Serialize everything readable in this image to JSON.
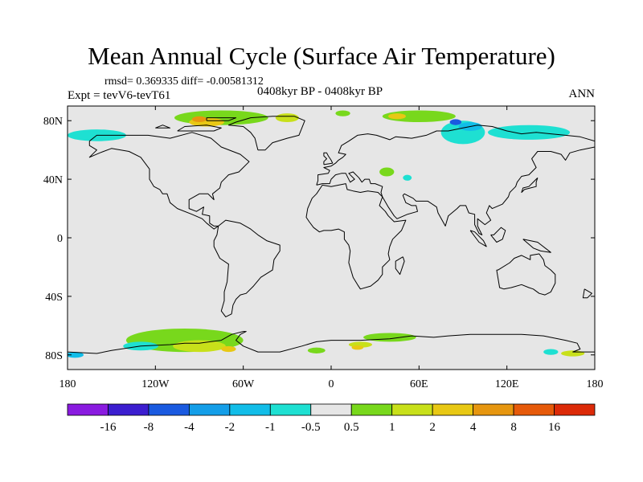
{
  "title": "Mean Annual Cycle (Surface Air Temperature)",
  "stats": "rmsd= 0.369335 diff= -0.00581312",
  "experiment": "Expt = tevV6-tevT61",
  "period": "0408kyr BP - 0408kyr BP",
  "season": "ANN",
  "map": {
    "projection": "cylindrical-equidistant",
    "lon_range": [
      -180,
      180
    ],
    "lat_range": [
      -90,
      90
    ],
    "background_color": "#e6e6e6",
    "coastline_color": "#000000",
    "lat_ticks": [
      {
        "lat": 80,
        "label": "80N"
      },
      {
        "lat": 40,
        "label": "40N"
      },
      {
        "lat": 0,
        "label": "0"
      },
      {
        "lat": -40,
        "label": "40S"
      },
      {
        "lat": -80,
        "label": "80S"
      }
    ],
    "lon_ticks": [
      {
        "lon": -180,
        "label": "180"
      },
      {
        "lon": -120,
        "label": "120W"
      },
      {
        "lon": -60,
        "label": "60W"
      },
      {
        "lon": 0,
        "label": "0"
      },
      {
        "lon": 60,
        "label": "60E"
      },
      {
        "lon": 120,
        "label": "120E"
      },
      {
        "lon": 180,
        "label": "180"
      }
    ]
  },
  "colorbar": {
    "colors": [
      "#8a1be0",
      "#3c1ecf",
      "#1a5ae0",
      "#149ee8",
      "#12bde8",
      "#1ee0d2",
      "#e6e6e6",
      "#78d81c",
      "#c8e01a",
      "#e8c814",
      "#e6960f",
      "#e65a0a",
      "#dc2a08"
    ],
    "labels": [
      "-16",
      "-8",
      "-4",
      "-2",
      "-1",
      "-0.5",
      "0.5",
      "1",
      "2",
      "4",
      "8",
      "16"
    ]
  },
  "anomalies": [
    {
      "level": "1",
      "color": "#78d81c",
      "lon": -75,
      "lat": 82,
      "rx": 32,
      "ry": 5
    },
    {
      "level": "4",
      "color": "#e8c814",
      "lon": -85,
      "lat": 79,
      "rx": 12,
      "ry": 3
    },
    {
      "level": "8",
      "color": "#e6960f",
      "lon": -90,
      "lat": 81,
      "rx": 5,
      "ry": 2
    },
    {
      "level": "2",
      "color": "#c8e01a",
      "lon": -30,
      "lat": 82,
      "rx": 8,
      "ry": 3
    },
    {
      "level": "1",
      "color": "#78d81c",
      "lon": 8,
      "lat": 85,
      "rx": 5,
      "ry": 2
    },
    {
      "level": "1",
      "color": "#78d81c",
      "lon": 60,
      "lat": 83,
      "rx": 25,
      "ry": 4
    },
    {
      "level": "4",
      "color": "#e8c814",
      "lon": 45,
      "lat": 83,
      "rx": 6,
      "ry": 2
    },
    {
      "level": "-0.5",
      "color": "#1ee0d2",
      "lon": 90,
      "lat": 72,
      "rx": 15,
      "ry": 8
    },
    {
      "level": "-1",
      "color": "#12bde8",
      "lon": 95,
      "lat": 76,
      "rx": 8,
      "ry": 3
    },
    {
      "level": "-4",
      "color": "#1a5ae0",
      "lon": 85,
      "lat": 79,
      "rx": 4,
      "ry": 2
    },
    {
      "level": "-0.5",
      "color": "#1ee0d2",
      "lon": -160,
      "lat": 70,
      "rx": 20,
      "ry": 4
    },
    {
      "level": "-0.5",
      "color": "#1ee0d2",
      "lon": 135,
      "lat": 72,
      "rx": 28,
      "ry": 5
    },
    {
      "level": "1",
      "color": "#78d81c",
      "lon": -100,
      "lat": -70,
      "rx": 40,
      "ry": 8
    },
    {
      "level": "2",
      "color": "#c8e01a",
      "lon": -90,
      "lat": -74,
      "rx": 18,
      "ry": 4
    },
    {
      "level": "4",
      "color": "#e8c814",
      "lon": -70,
      "lat": -76,
      "rx": 5,
      "ry": 2
    },
    {
      "level": "-0.5",
      "color": "#1ee0d2",
      "lon": -130,
      "lat": -74,
      "rx": 12,
      "ry": 3
    },
    {
      "level": "1",
      "color": "#78d81c",
      "lon": 40,
      "lat": -68,
      "rx": 18,
      "ry": 3
    },
    {
      "level": "2",
      "color": "#c8e01a",
      "lon": 20,
      "lat": -73,
      "rx": 8,
      "ry": 2
    },
    {
      "level": "4",
      "color": "#e8c814",
      "lon": 18,
      "lat": -75,
      "rx": 4,
      "ry": 1.5
    },
    {
      "level": "1",
      "color": "#78d81c",
      "lon": -10,
      "lat": -77,
      "rx": 6,
      "ry": 2
    },
    {
      "level": "2",
      "color": "#c8e01a",
      "lon": 165,
      "lat": -79,
      "rx": 8,
      "ry": 2
    },
    {
      "level": "-0.5",
      "color": "#1ee0d2",
      "lon": 150,
      "lat": -78,
      "rx": 5,
      "ry": 2
    },
    {
      "level": "-1",
      "color": "#12bde8",
      "lon": -175,
      "lat": -80,
      "rx": 6,
      "ry": 2
    },
    {
      "level": "1",
      "color": "#78d81c",
      "lon": 38,
      "lat": 45,
      "rx": 5,
      "ry": 3
    },
    {
      "level": "-0.5",
      "color": "#1ee0d2",
      "lon": 52,
      "lat": 41,
      "rx": 3,
      "ry": 2
    }
  ],
  "coastlines": [
    [
      [
        -165,
        66
      ],
      [
        -160,
        70
      ],
      [
        -140,
        70
      ],
      [
        -125,
        70
      ],
      [
        -110,
        68
      ],
      [
        -95,
        72
      ],
      [
        -82,
        68
      ],
      [
        -75,
        62
      ],
      [
        -62,
        57
      ],
      [
        -56,
        52
      ],
      [
        -63,
        45
      ],
      [
        -70,
        43
      ],
      [
        -75,
        38
      ],
      [
        -76,
        34
      ],
      [
        -81,
        30
      ],
      [
        -80,
        26
      ],
      [
        -82,
        28
      ],
      [
        -84,
        30
      ],
      [
        -90,
        30
      ],
      [
        -97,
        26
      ],
      [
        -97,
        20
      ],
      [
        -92,
        18
      ],
      [
        -87,
        21
      ],
      [
        -88,
        16
      ],
      [
        -83,
        15
      ],
      [
        -83,
        10
      ],
      [
        -80,
        8
      ],
      [
        -77,
        8
      ],
      [
        -80,
        6
      ],
      [
        -85,
        10
      ],
      [
        -88,
        13
      ],
      [
        -95,
        16
      ],
      [
        -105,
        20
      ],
      [
        -110,
        24
      ],
      [
        -112,
        30
      ],
      [
        -115,
        30
      ],
      [
        -117,
        33
      ],
      [
        -121,
        35
      ],
      [
        -124,
        40
      ],
      [
        -124,
        47
      ],
      [
        -130,
        55
      ],
      [
        -138,
        59
      ],
      [
        -150,
        61
      ],
      [
        -158,
        58
      ],
      [
        -165,
        55
      ],
      [
        -160,
        60
      ],
      [
        -165,
        63
      ],
      [
        -165,
        66
      ]
    ],
    [
      [
        -77,
        8
      ],
      [
        -72,
        12
      ],
      [
        -62,
        10
      ],
      [
        -55,
        6
      ],
      [
        -50,
        2
      ],
      [
        -44,
        -2
      ],
      [
        -35,
        -5
      ],
      [
        -35,
        -9
      ],
      [
        -39,
        -15
      ],
      [
        -40,
        -22
      ],
      [
        -48,
        -27
      ],
      [
        -53,
        -33
      ],
      [
        -58,
        -38
      ],
      [
        -62,
        -39
      ],
      [
        -65,
        -42
      ],
      [
        -67,
        -46
      ],
      [
        -68,
        -52
      ],
      [
        -72,
        -54
      ],
      [
        -75,
        -50
      ],
      [
        -73,
        -43
      ],
      [
        -73,
        -37
      ],
      [
        -71,
        -30
      ],
      [
        -70,
        -18
      ],
      [
        -76,
        -14
      ],
      [
        -80,
        -6
      ],
      [
        -80,
        -2
      ],
      [
        -78,
        2
      ],
      [
        -77,
        8
      ]
    ],
    [
      [
        -10,
        36
      ],
      [
        -9,
        39
      ],
      [
        -9,
        43
      ],
      [
        -2,
        44
      ],
      [
        -1,
        46
      ],
      [
        -5,
        48
      ],
      [
        0,
        49
      ],
      [
        3,
        51
      ],
      [
        5,
        53
      ],
      [
        8,
        55
      ],
      [
        10,
        57
      ],
      [
        5,
        58
      ],
      [
        7,
        63
      ],
      [
        12,
        66
      ],
      [
        18,
        70
      ],
      [
        25,
        71
      ],
      [
        31,
        70
      ],
      [
        40,
        67
      ],
      [
        44,
        69
      ],
      [
        55,
        68
      ],
      [
        65,
        70
      ],
      [
        72,
        73
      ],
      [
        80,
        73
      ],
      [
        90,
        75
      ],
      [
        100,
        77
      ],
      [
        110,
        76
      ],
      [
        120,
        73
      ],
      [
        130,
        71
      ],
      [
        140,
        72
      ],
      [
        150,
        71
      ],
      [
        160,
        70
      ],
      [
        170,
        69
      ],
      [
        180,
        66
      ],
      [
        180,
        62
      ],
      [
        170,
        60
      ],
      [
        163,
        58
      ],
      [
        160,
        53
      ],
      [
        157,
        57
      ],
      [
        150,
        59
      ],
      [
        141,
        59
      ],
      [
        137,
        54
      ],
      [
        140,
        48
      ],
      [
        135,
        43
      ],
      [
        130,
        42
      ],
      [
        127,
        38
      ],
      [
        126,
        35
      ],
      [
        122,
        31
      ],
      [
        121,
        28
      ],
      [
        117,
        23
      ],
      [
        110,
        20
      ],
      [
        108,
        22
      ],
      [
        106,
        17
      ],
      [
        109,
        12
      ],
      [
        105,
        9
      ],
      [
        100,
        13
      ],
      [
        100,
        8
      ],
      [
        103,
        2
      ],
      [
        101,
        3
      ],
      [
        98,
        9
      ],
      [
        98,
        16
      ],
      [
        94,
        17
      ],
      [
        92,
        22
      ],
      [
        88,
        22
      ],
      [
        86,
        20
      ],
      [
        80,
        15
      ],
      [
        78,
        8
      ],
      [
        73,
        17
      ],
      [
        72,
        21
      ],
      [
        66,
        25
      ],
      [
        58,
        25
      ],
      [
        56,
        27
      ],
      [
        50,
        30
      ],
      [
        49,
        29
      ],
      [
        51,
        24
      ],
      [
        55,
        22
      ],
      [
        58,
        22
      ],
      [
        59,
        18
      ],
      [
        52,
        16
      ],
      [
        45,
        13
      ],
      [
        43,
        15
      ],
      [
        39,
        21
      ],
      [
        35,
        28
      ],
      [
        34,
        31
      ],
      [
        35,
        35
      ],
      [
        30,
        37
      ],
      [
        27,
        37
      ],
      [
        26,
        40
      ],
      [
        23,
        40
      ],
      [
        21,
        38
      ],
      [
        19,
        41
      ],
      [
        15,
        45
      ],
      [
        12,
        44
      ],
      [
        16,
        40
      ],
      [
        13,
        38
      ],
      [
        10,
        44
      ],
      [
        7,
        44
      ],
      [
        3,
        43
      ],
      [
        0,
        40
      ],
      [
        -1,
        37
      ],
      [
        -6,
        37
      ],
      [
        -10,
        36
      ]
    ],
    [
      [
        -6,
        36
      ],
      [
        0,
        35
      ],
      [
        10,
        37
      ],
      [
        11,
        33
      ],
      [
        15,
        32
      ],
      [
        20,
        31
      ],
      [
        25,
        32
      ],
      [
        32,
        31
      ],
      [
        35,
        28
      ],
      [
        33,
        22
      ],
      [
        37,
        18
      ],
      [
        39,
        15
      ],
      [
        43,
        11
      ],
      [
        51,
        12
      ],
      [
        48,
        5
      ],
      [
        42,
        -1
      ],
      [
        40,
        -6
      ],
      [
        39,
        -11
      ],
      [
        40,
        -15
      ],
      [
        35,
        -20
      ],
      [
        35,
        -25
      ],
      [
        32,
        -29
      ],
      [
        27,
        -33
      ],
      [
        20,
        -35
      ],
      [
        18,
        -32
      ],
      [
        15,
        -27
      ],
      [
        12,
        -17
      ],
      [
        13,
        -9
      ],
      [
        12,
        -5
      ],
      [
        9,
        -1
      ],
      [
        9,
        4
      ],
      [
        5,
        6
      ],
      [
        0,
        5
      ],
      [
        -5,
        5
      ],
      [
        -8,
        4
      ],
      [
        -12,
        7
      ],
      [
        -15,
        11
      ],
      [
        -17,
        14
      ],
      [
        -16,
        20
      ],
      [
        -13,
        27
      ],
      [
        -10,
        30
      ],
      [
        -6,
        36
      ]
    ],
    [
      [
        113,
        -22
      ],
      [
        115,
        -34
      ],
      [
        118,
        -35
      ],
      [
        123,
        -34
      ],
      [
        130,
        -32
      ],
      [
        135,
        -34
      ],
      [
        138,
        -35
      ],
      [
        142,
        -38
      ],
      [
        146,
        -39
      ],
      [
        150,
        -37
      ],
      [
        153,
        -31
      ],
      [
        153,
        -25
      ],
      [
        150,
        -22
      ],
      [
        146,
        -19
      ],
      [
        145,
        -15
      ],
      [
        142,
        -11
      ],
      [
        136,
        -12
      ],
      [
        136,
        -15
      ],
      [
        130,
        -12
      ],
      [
        125,
        -14
      ],
      [
        122,
        -17
      ],
      [
        114,
        -22
      ],
      [
        113,
        -22
      ]
    ],
    [
      [
        -50,
        60
      ],
      [
        -45,
        60
      ],
      [
        -40,
        65
      ],
      [
        -30,
        68
      ],
      [
        -22,
        70
      ],
      [
        -20,
        75
      ],
      [
        -18,
        80
      ],
      [
        -25,
        83
      ],
      [
        -40,
        83
      ],
      [
        -55,
        82
      ],
      [
        -65,
        79
      ],
      [
        -70,
        77
      ],
      [
        -60,
        76
      ],
      [
        -55,
        72
      ],
      [
        -52,
        68
      ],
      [
        -50,
        60
      ]
    ],
    [
      [
        -180,
        -78
      ],
      [
        -160,
        -79
      ],
      [
        -150,
        -77
      ],
      [
        -130,
        -74
      ],
      [
        -110,
        -73
      ],
      [
        -100,
        -72
      ],
      [
        -90,
        -72
      ],
      [
        -75,
        -70
      ],
      [
        -68,
        -66
      ],
      [
        -60,
        -64
      ],
      [
        -58,
        -64
      ],
      [
        -62,
        -66
      ],
      [
        -65,
        -70
      ],
      [
        -60,
        -74
      ],
      [
        -50,
        -78
      ],
      [
        -35,
        -78
      ],
      [
        -20,
        -74
      ],
      [
        -10,
        -71
      ],
      [
        0,
        -70
      ],
      [
        20,
        -70
      ],
      [
        40,
        -69
      ],
      [
        55,
        -67
      ],
      [
        70,
        -68
      ],
      [
        80,
        -67
      ],
      [
        95,
        -66
      ],
      [
        110,
        -66
      ],
      [
        130,
        -66
      ],
      [
        145,
        -67
      ],
      [
        160,
        -70
      ],
      [
        168,
        -72
      ],
      [
        170,
        -76
      ],
      [
        165,
        -78
      ],
      [
        180,
        -78
      ]
    ],
    [
      [
        141,
        41
      ],
      [
        140,
        38
      ],
      [
        140,
        35
      ],
      [
        136,
        34
      ],
      [
        132,
        33
      ],
      [
        130,
        31
      ],
      [
        131,
        34
      ],
      [
        135,
        35
      ],
      [
        137,
        37
      ],
      [
        140,
        40
      ],
      [
        141,
        41
      ]
    ],
    [
      [
        -5,
        50
      ],
      [
        -5,
        52
      ],
      [
        -3,
        54
      ],
      [
        -5,
        56
      ],
      [
        -5,
        58
      ],
      [
        -3,
        58
      ],
      [
        -2,
        56
      ],
      [
        0,
        53
      ],
      [
        1,
        51
      ],
      [
        -5,
        50
      ]
    ],
    [
      [
        95,
        5
      ],
      [
        98,
        4
      ],
      [
        104,
        -2
      ],
      [
        106,
        -6
      ],
      [
        101,
        -3
      ],
      [
        95,
        5
      ]
    ],
    [
      [
        109,
        2
      ],
      [
        113,
        -3
      ],
      [
        117,
        -1
      ],
      [
        119,
        5
      ],
      [
        116,
        7
      ],
      [
        111,
        2
      ],
      [
        109,
        2
      ]
    ],
    [
      [
        131,
        -1
      ],
      [
        141,
        -3
      ],
      [
        150,
        -10
      ],
      [
        143,
        -9
      ],
      [
        138,
        -7
      ],
      [
        131,
        -1
      ]
    ],
    [
      [
        49,
        -13
      ],
      [
        50,
        -16
      ],
      [
        47,
        -25
      ],
      [
        44,
        -21
      ],
      [
        44,
        -16
      ],
      [
        49,
        -13
      ]
    ],
    [
      [
        173,
        -35
      ],
      [
        178,
        -38
      ],
      [
        175,
        -41
      ],
      [
        172,
        -41
      ],
      [
        173,
        -35
      ]
    ],
    [
      [
        -105,
        73
      ],
      [
        -95,
        73
      ],
      [
        -80,
        73
      ],
      [
        -75,
        75
      ],
      [
        -85,
        77
      ],
      [
        -100,
        76
      ],
      [
        -105,
        73
      ]
    ],
    [
      [
        -120,
        75
      ],
      [
        -110,
        75
      ],
      [
        -115,
        77
      ],
      [
        -120,
        75
      ]
    ],
    [
      [
        -85,
        80
      ],
      [
        -70,
        80
      ],
      [
        -65,
        82
      ],
      [
        -85,
        82
      ],
      [
        -85,
        80
      ]
    ]
  ]
}
